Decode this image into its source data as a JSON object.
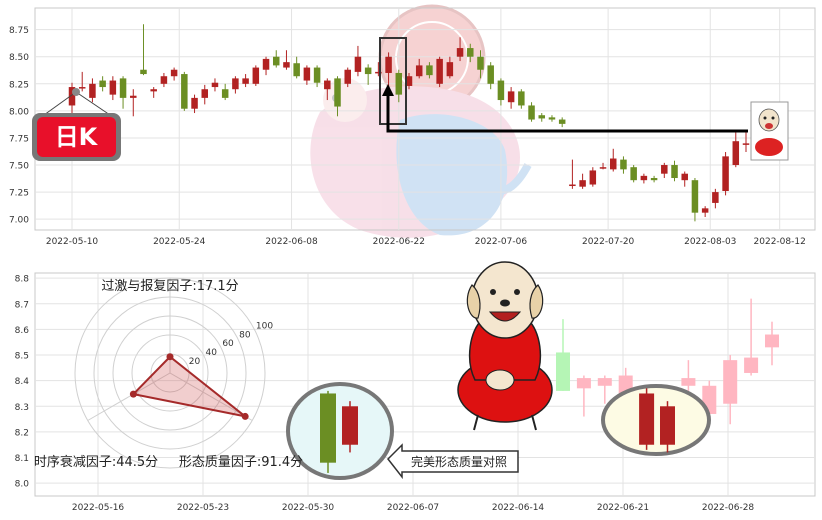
{
  "colors": {
    "up": "#b22222",
    "down": "#6b8e23",
    "up_faded": "#ffb6c1",
    "down_faded": "#b5f5b5",
    "grid": "#e3e3e3",
    "frame": "#c8c8c8",
    "badge": "#e8102a",
    "radar": "#a52a2a"
  },
  "icons": {
    "badge": "day-k-badge",
    "mascot_large": "dog-mascot",
    "mascot_small": "dog-mascot-small",
    "watermark": "pig-logo-watermark"
  },
  "badge_text": "日K",
  "chart_data": [
    {
      "type": "candlestick",
      "title": "",
      "xlabel": "",
      "ylabel": "",
      "ylim": [
        6.9,
        8.95
      ],
      "yticks": [
        "7.00",
        "7.25",
        "7.50",
        "7.75",
        "8.00",
        "8.25",
        "8.50",
        "8.75"
      ],
      "xtick_labels": [
        "2022-05-10",
        "2022-05-24",
        "2022-06-08",
        "2022-06-22",
        "2022-07-06",
        "2022-07-20",
        "2022-08-03",
        "2022-08-12"
      ],
      "grid": true,
      "highlight_box_dates": [
        "2022-06-24"
      ],
      "candles": [
        {
          "date": "2022-05-10",
          "o": 8.05,
          "c": 8.22,
          "h": 8.26,
          "l": 7.98
        },
        {
          "date": "2022-05-11",
          "o": 8.22,
          "c": 8.22,
          "h": 8.36,
          "l": 8.18
        },
        {
          "date": "2022-05-12",
          "o": 8.12,
          "c": 8.25,
          "h": 8.3,
          "l": 8.08
        },
        {
          "date": "2022-05-13",
          "o": 8.28,
          "c": 8.22,
          "h": 8.32,
          "l": 8.18
        },
        {
          "date": "2022-05-16",
          "o": 8.15,
          "c": 8.28,
          "h": 8.32,
          "l": 8.1
        },
        {
          "date": "2022-05-17",
          "o": 8.3,
          "c": 8.12,
          "h": 8.32,
          "l": 8.02
        },
        {
          "date": "2022-05-18",
          "o": 8.12,
          "c": 8.14,
          "h": 8.2,
          "l": 7.95
        },
        {
          "date": "2022-05-19",
          "o": 8.38,
          "c": 8.34,
          "h": 8.8,
          "l": 8.33
        },
        {
          "date": "2022-05-20",
          "o": 8.18,
          "c": 8.2,
          "h": 8.22,
          "l": 8.12
        },
        {
          "date": "2022-05-23",
          "o": 8.25,
          "c": 8.32,
          "h": 8.35,
          "l": 8.22
        },
        {
          "date": "2022-05-24",
          "o": 8.32,
          "c": 8.38,
          "h": 8.4,
          "l": 8.28
        },
        {
          "date": "2022-05-25",
          "o": 8.34,
          "c": 8.02,
          "h": 8.36,
          "l": 8.0
        },
        {
          "date": "2022-05-26",
          "o": 8.02,
          "c": 8.12,
          "h": 8.15,
          "l": 7.98
        },
        {
          "date": "2022-05-27",
          "o": 8.12,
          "c": 8.2,
          "h": 8.24,
          "l": 8.06
        },
        {
          "date": "2022-05-30",
          "o": 8.22,
          "c": 8.26,
          "h": 8.3,
          "l": 8.18
        },
        {
          "date": "2022-05-31",
          "o": 8.2,
          "c": 8.12,
          "h": 8.25,
          "l": 8.1
        },
        {
          "date": "2022-06-01",
          "o": 8.2,
          "c": 8.3,
          "h": 8.32,
          "l": 8.16
        },
        {
          "date": "2022-06-02",
          "o": 8.25,
          "c": 8.3,
          "h": 8.34,
          "l": 8.22
        },
        {
          "date": "2022-06-06",
          "o": 8.25,
          "c": 8.4,
          "h": 8.42,
          "l": 8.23
        },
        {
          "date": "2022-06-07",
          "o": 8.38,
          "c": 8.48,
          "h": 8.5,
          "l": 8.33
        },
        {
          "date": "2022-06-08",
          "o": 8.5,
          "c": 8.42,
          "h": 8.56,
          "l": 8.4
        },
        {
          "date": "2022-06-09",
          "o": 8.4,
          "c": 8.45,
          "h": 8.56,
          "l": 8.38
        },
        {
          "date": "2022-06-10",
          "o": 8.44,
          "c": 8.32,
          "h": 8.5,
          "l": 8.3
        },
        {
          "date": "2022-06-13",
          "o": 8.28,
          "c": 8.4,
          "h": 8.42,
          "l": 8.24
        },
        {
          "date": "2022-06-14",
          "o": 8.4,
          "c": 8.26,
          "h": 8.42,
          "l": 8.22
        },
        {
          "date": "2022-06-15",
          "o": 8.2,
          "c": 8.28,
          "h": 8.3,
          "l": 8.1
        },
        {
          "date": "2022-06-16",
          "o": 8.3,
          "c": 8.04,
          "h": 8.32,
          "l": 7.95
        },
        {
          "date": "2022-06-17",
          "o": 8.25,
          "c": 8.38,
          "h": 8.4,
          "l": 8.22
        },
        {
          "date": "2022-06-20",
          "o": 8.36,
          "c": 8.5,
          "h": 8.6,
          "l": 8.32
        },
        {
          "date": "2022-06-21",
          "o": 8.4,
          "c": 8.34,
          "h": 8.43,
          "l": 8.24
        },
        {
          "date": "2022-06-22",
          "o": 8.36,
          "c": 8.36,
          "h": 8.45,
          "l": 8.32
        },
        {
          "date": "2022-06-23",
          "o": 8.35,
          "c": 8.5,
          "h": 8.54,
          "l": 8.2
        },
        {
          "date": "2022-06-24",
          "o": 8.35,
          "c": 8.15,
          "h": 8.38,
          "l": 8.08
        },
        {
          "date": "2022-06-27",
          "o": 8.23,
          "c": 8.32,
          "h": 8.35,
          "l": 8.2
        },
        {
          "date": "2022-06-28",
          "o": 8.32,
          "c": 8.42,
          "h": 8.48,
          "l": 8.3
        },
        {
          "date": "2022-06-29",
          "o": 8.42,
          "c": 8.33,
          "h": 8.45,
          "l": 8.3
        },
        {
          "date": "2022-06-30",
          "o": 8.25,
          "c": 8.48,
          "h": 8.5,
          "l": 8.22
        },
        {
          "date": "2022-07-01",
          "o": 8.32,
          "c": 8.45,
          "h": 8.5,
          "l": 8.3
        },
        {
          "date": "2022-07-04",
          "o": 8.5,
          "c": 8.58,
          "h": 8.68,
          "l": 8.46
        },
        {
          "date": "2022-07-05",
          "o": 8.58,
          "c": 8.5,
          "h": 8.62,
          "l": 8.45
        },
        {
          "date": "2022-07-06",
          "o": 8.5,
          "c": 8.38,
          "h": 8.56,
          "l": 8.3
        },
        {
          "date": "2022-07-07",
          "o": 8.42,
          "c": 8.25,
          "h": 8.45,
          "l": 8.2
        },
        {
          "date": "2022-07-08",
          "o": 8.28,
          "c": 8.1,
          "h": 8.3,
          "l": 8.05
        },
        {
          "date": "2022-07-11",
          "o": 8.08,
          "c": 8.18,
          "h": 8.22,
          "l": 8.02
        },
        {
          "date": "2022-07-12",
          "o": 8.18,
          "c": 8.05,
          "h": 8.2,
          "l": 8.02
        },
        {
          "date": "2022-07-13",
          "o": 8.05,
          "c": 7.92,
          "h": 8.08,
          "l": 7.9
        },
        {
          "date": "2022-07-14",
          "o": 7.96,
          "c": 7.93,
          "h": 7.98,
          "l": 7.9
        },
        {
          "date": "2022-07-15",
          "o": 7.94,
          "c": 7.92,
          "h": 7.96,
          "l": 7.9
        },
        {
          "date": "2022-07-18",
          "o": 7.92,
          "c": 7.88,
          "h": 7.94,
          "l": 7.85
        },
        {
          "date": "2022-07-19",
          "o": 7.32,
          "c": 7.32,
          "h": 7.55,
          "l": 7.28
        },
        {
          "date": "2022-07-20",
          "o": 7.3,
          "c": 7.36,
          "h": 7.42,
          "l": 7.28
        },
        {
          "date": "2022-07-21",
          "o": 7.32,
          "c": 7.45,
          "h": 7.48,
          "l": 7.3
        },
        {
          "date": "2022-07-22",
          "o": 7.48,
          "c": 7.48,
          "h": 7.52,
          "l": 7.46
        },
        {
          "date": "2022-07-25",
          "o": 7.46,
          "c": 7.56,
          "h": 7.65,
          "l": 7.44
        },
        {
          "date": "2022-07-26",
          "o": 7.55,
          "c": 7.46,
          "h": 7.58,
          "l": 7.42
        },
        {
          "date": "2022-07-27",
          "o": 7.48,
          "c": 7.36,
          "h": 7.5,
          "l": 7.34
        },
        {
          "date": "2022-07-28",
          "o": 7.36,
          "c": 7.4,
          "h": 7.42,
          "l": 7.33
        },
        {
          "date": "2022-07-29",
          "o": 7.38,
          "c": 7.36,
          "h": 7.4,
          "l": 7.34
        },
        {
          "date": "2022-08-01",
          "o": 7.42,
          "c": 7.5,
          "h": 7.52,
          "l": 7.38
        },
        {
          "date": "2022-08-02",
          "o": 7.5,
          "c": 7.38,
          "h": 7.54,
          "l": 7.35
        },
        {
          "date": "2022-08-03",
          "o": 7.36,
          "c": 7.42,
          "h": 7.44,
          "l": 7.3
        },
        {
          "date": "2022-08-04",
          "o": 7.36,
          "c": 7.06,
          "h": 7.38,
          "l": 6.98
        },
        {
          "date": "2022-08-05",
          "o": 7.06,
          "c": 7.1,
          "h": 7.12,
          "l": 7.02
        },
        {
          "date": "2022-08-08",
          "o": 7.15,
          "c": 7.25,
          "h": 7.28,
          "l": 7.1
        },
        {
          "date": "2022-08-09",
          "o": 7.26,
          "c": 7.58,
          "h": 7.62,
          "l": 7.22
        },
        {
          "date": "2022-08-10",
          "o": 7.5,
          "c": 7.72,
          "h": 7.8,
          "l": 7.48
        },
        {
          "date": "2022-08-11",
          "o": 7.7,
          "c": 7.7,
          "h": 7.82,
          "l": 7.62
        }
      ]
    },
    {
      "type": "candlestick",
      "title": "",
      "ylim": [
        7.95,
        8.82
      ],
      "yticks": [
        "8.0",
        "8.1",
        "8.2",
        "8.3",
        "8.4",
        "8.5",
        "8.6",
        "8.7",
        "8.8"
      ],
      "xtick_labels": [
        "2022-05-16",
        "2022-05-23",
        "2022-05-30",
        "2022-06-07",
        "2022-06-14",
        "2022-06-21",
        "2022-06-28"
      ],
      "grid": true,
      "example_label": "完美形态质量对照",
      "example_candles": [
        {
          "o": 8.08,
          "c": 8.35,
          "h": 8.36,
          "l": 8.04
        },
        {
          "o": 8.3,
          "c": 8.15,
          "h": 8.32,
          "l": 8.12
        }
      ],
      "faded_candles": [
        {
          "o": 8.51,
          "c": 8.36,
          "h": 8.64,
          "l": 8.36
        },
        {
          "o": 8.37,
          "c": 8.41,
          "h": 8.42,
          "l": 8.26
        },
        {
          "o": 8.38,
          "c": 8.41,
          "h": 8.42,
          "l": 8.31
        },
        {
          "o": 8.35,
          "c": 8.42,
          "h": 8.45,
          "l": 8.24
        },
        {
          "o": 8.35,
          "c": 8.15,
          "h": 8.37,
          "l": 8.13
        },
        {
          "o": 8.3,
          "c": 8.15,
          "h": 8.32,
          "l": 8.12
        },
        {
          "o": 8.38,
          "c": 8.41,
          "h": 8.48,
          "l": 8.36
        },
        {
          "o": 8.27,
          "c": 8.38,
          "h": 8.4,
          "l": 8.25
        },
        {
          "o": 8.31,
          "c": 8.48,
          "h": 8.5,
          "l": 8.23
        },
        {
          "o": 8.43,
          "c": 8.49,
          "h": 8.72,
          "l": 8.42
        },
        {
          "o": 8.53,
          "c": 8.58,
          "h": 8.63,
          "l": 8.46
        }
      ],
      "circled_indices": [
        4,
        5
      ]
    },
    {
      "type": "radar",
      "rlim": [
        0,
        100
      ],
      "rticks": [
        "20",
        "40",
        "60",
        "80",
        "100"
      ],
      "axes": [
        {
          "label": "过激与报复因子",
          "value": 17.1,
          "display": "过激与报复因子:17.1分"
        },
        {
          "label": "时序衰减因子",
          "value": 44.5,
          "display": "时序衰减因子:44.5分"
        },
        {
          "label": "形态质量因子",
          "value": 91.4,
          "display": "形态质量因子:91.4分"
        }
      ]
    }
  ]
}
